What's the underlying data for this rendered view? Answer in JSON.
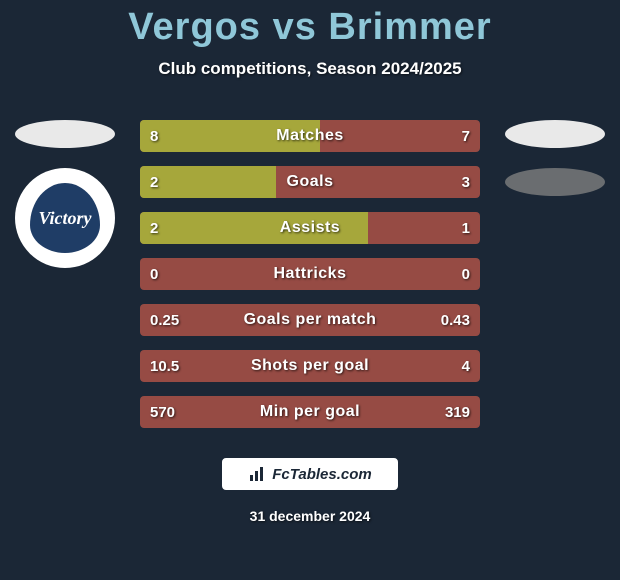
{
  "colors": {
    "background": "#1b2736",
    "title": "#8fc7d8",
    "subtitle": "#ffffff",
    "bar_bg": "#964b44",
    "bar_fill": "#a6a73b",
    "bar_text": "#ffffff",
    "pill_light": "#e9e9e9",
    "pill_dark": "#6a6d70",
    "club_logo_outer": "#ffffff",
    "club_logo_inner": "#1f3d66",
    "club_logo_text": "#ffffff",
    "footer_box_bg": "#ffffff",
    "footer_box_border": "#1b2736",
    "footer_text": "#1b2736",
    "footer_date": "#ffffff"
  },
  "typography": {
    "title_fontsize": 38,
    "subtitle_fontsize": 17,
    "bar_label_fontsize": 16,
    "bar_value_fontsize": 15,
    "footer_fontsize": 15,
    "date_fontsize": 14
  },
  "title": "Vergos vs Brimmer",
  "subtitle": "Club competitions, Season 2024/2025",
  "club_logo_text": "Victory",
  "bars": {
    "type": "comparison-bar",
    "height": 32,
    "gap": 14,
    "border_radius": 4,
    "items": [
      {
        "label": "Matches",
        "left": "8",
        "right": "7",
        "left_pct": 53,
        "right_pct": 0
      },
      {
        "label": "Goals",
        "left": "2",
        "right": "3",
        "left_pct": 40,
        "right_pct": 0
      },
      {
        "label": "Assists",
        "left": "2",
        "right": "1",
        "left_pct": 67,
        "right_pct": 0
      },
      {
        "label": "Hattricks",
        "left": "0",
        "right": "0",
        "left_pct": 0,
        "right_pct": 0
      },
      {
        "label": "Goals per match",
        "left": "0.25",
        "right": "0.43",
        "left_pct": 0,
        "right_pct": 0
      },
      {
        "label": "Shots per goal",
        "left": "10.5",
        "right": "4",
        "left_pct": 0,
        "right_pct": 0
      },
      {
        "label": "Min per goal",
        "left": "570",
        "right": "319",
        "left_pct": 0,
        "right_pct": 0
      }
    ]
  },
  "footer_brand": "FcTables.com",
  "footer_date": "31 december 2024"
}
